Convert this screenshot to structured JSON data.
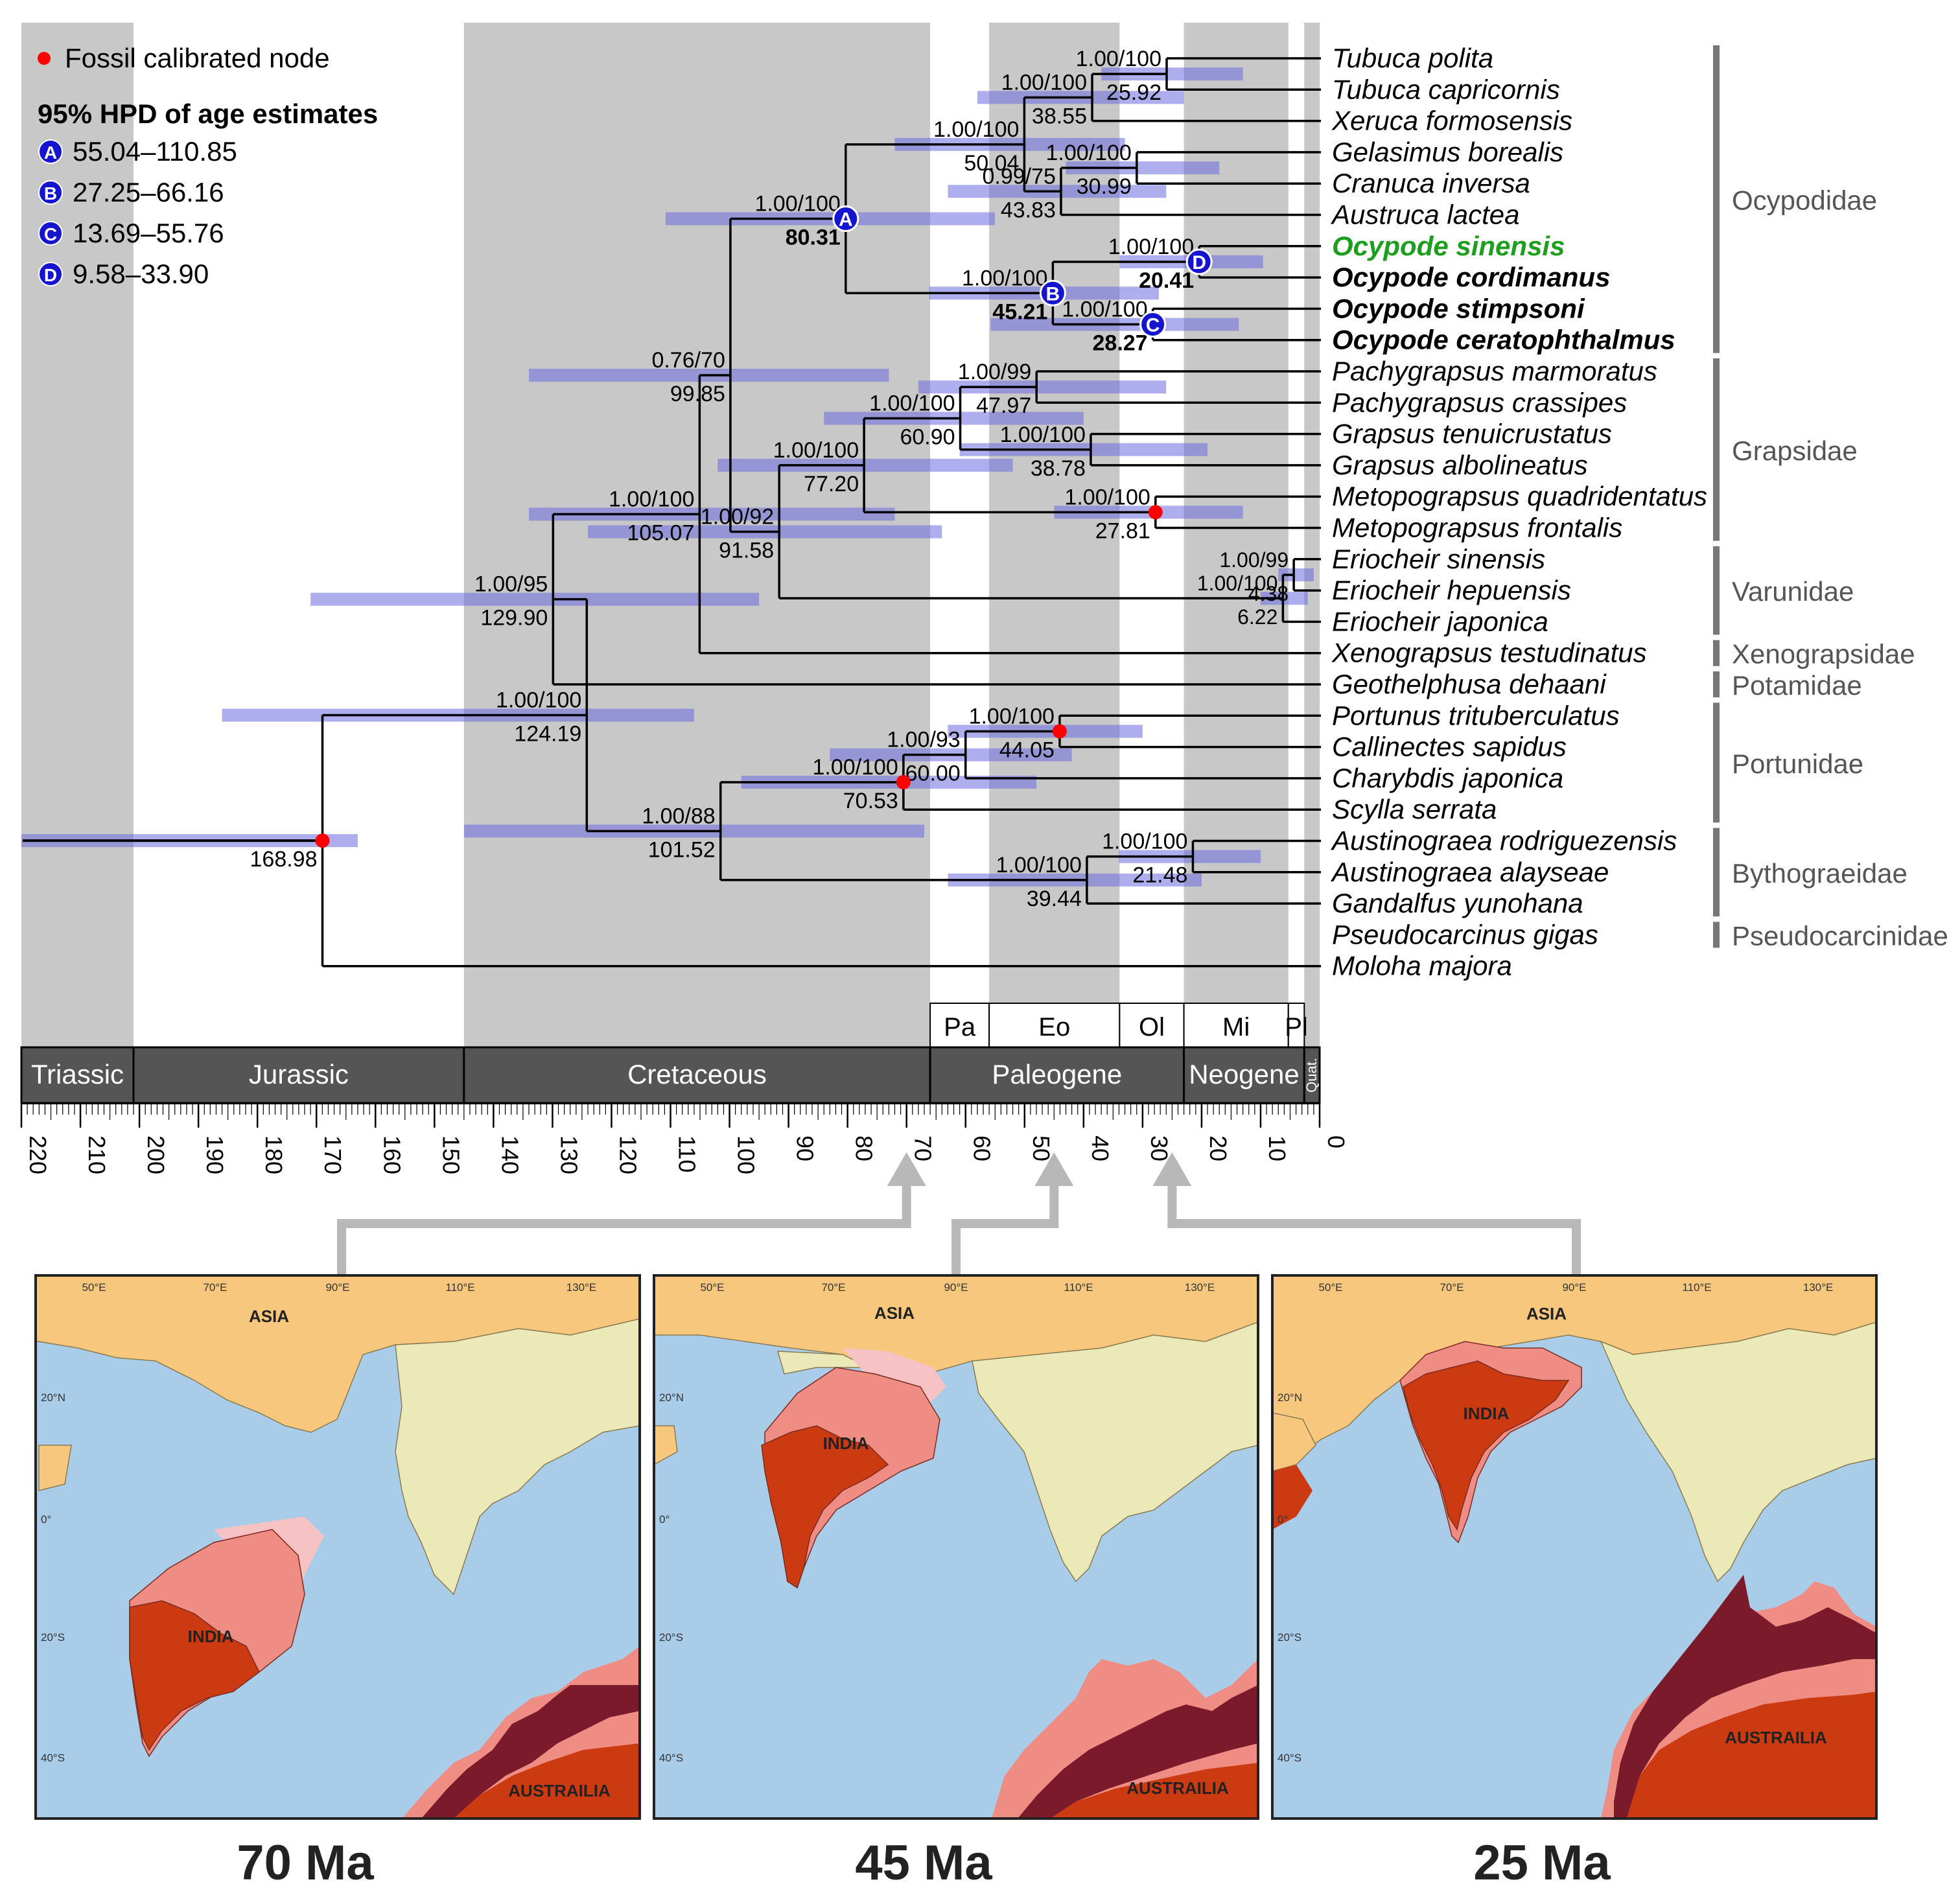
{
  "legend": {
    "fossil_label": "Fossil calibrated node",
    "hpd_title": "95% HPD of age estimates",
    "items": [
      {
        "letter": "A",
        "range": "55.04–110.85"
      },
      {
        "letter": "B",
        "range": "27.25–66.16"
      },
      {
        "letter": "C",
        "range": "13.69–55.76"
      },
      {
        "letter": "D",
        "range": "9.58–33.90"
      }
    ]
  },
  "taxa": [
    {
      "name": "Tubuca polita",
      "style": "normal"
    },
    {
      "name": "Tubuca capricornis",
      "style": "normal"
    },
    {
      "name": "Xeruca formosensis",
      "style": "normal"
    },
    {
      "name": "Gelasimus borealis",
      "style": "normal"
    },
    {
      "name": "Cranuca inversa",
      "style": "normal"
    },
    {
      "name": "Austruca lactea",
      "style": "normal"
    },
    {
      "name": "Ocypode sinensis",
      "style": "highlight"
    },
    {
      "name": "Ocypode cordimanus",
      "style": "bold"
    },
    {
      "name": "Ocypode stimpsoni",
      "style": "bold"
    },
    {
      "name": "Ocypode ceratophthalmus",
      "style": "bold"
    },
    {
      "name": "Pachygrapsus marmoratus",
      "style": "normal"
    },
    {
      "name": "Pachygrapsus crassipes",
      "style": "normal"
    },
    {
      "name": "Grapsus tenuicrustatus",
      "style": "normal"
    },
    {
      "name": "Grapsus albolineatus",
      "style": "normal"
    },
    {
      "name": "Metopograpsus quadridentatus",
      "style": "normal"
    },
    {
      "name": "Metopograpsus frontalis",
      "style": "normal"
    },
    {
      "name": "Eriocheir sinensis",
      "style": "normal"
    },
    {
      "name": "Eriocheir hepuensis",
      "style": "normal"
    },
    {
      "name": "Eriocheir japonica",
      "style": "normal"
    },
    {
      "name": "Xenograpsus testudinatus",
      "style": "normal"
    },
    {
      "name": "Geothelphusa dehaani",
      "style": "normal"
    },
    {
      "name": "Portunus trituberculatus",
      "style": "normal"
    },
    {
      "name": "Callinectes sapidus",
      "style": "normal"
    },
    {
      "name": "Charybdis japonica",
      "style": "normal"
    },
    {
      "name": "Scylla serrata",
      "style": "normal"
    },
    {
      "name": "Austinograea rodriguezensis",
      "style": "normal"
    },
    {
      "name": "Austinograea alayseae",
      "style": "normal"
    },
    {
      "name": "Gandalfus yunohana",
      "style": "normal"
    },
    {
      "name": "Pseudocarcinus gigas",
      "style": "normal"
    },
    {
      "name": "Moloha majora",
      "style": "normal"
    }
  ],
  "families": [
    {
      "name": "Ocypodidae",
      "from": 0,
      "to": 9
    },
    {
      "name": "Grapsidae",
      "from": 10,
      "to": 15
    },
    {
      "name": "Varunidae",
      "from": 16,
      "to": 18
    },
    {
      "name": "Xenograpsidae",
      "from": 19,
      "to": 19
    },
    {
      "name": "Potamidae",
      "from": 20,
      "to": 20
    },
    {
      "name": "Portunidae",
      "from": 21,
      "to": 24
    },
    {
      "name": "Bythograeidae",
      "from": 25,
      "to": 27
    },
    {
      "name": "Pseudocarcinidae",
      "from": 28,
      "to": 28
    }
  ],
  "nodes": [
    {
      "id": "root",
      "age": 168.98,
      "children": [
        "n_brach",
        "moloha"
      ],
      "support": "",
      "age_label": "168.98",
      "hpd": [
        220,
        163
      ],
      "fossil": true
    },
    {
      "id": "n_brach",
      "age": 124.19,
      "children": [
        "n_grap",
        "n_port"
      ],
      "support": "1.00/100",
      "age_label": "124.19",
      "hpd": [
        186,
        106
      ]
    },
    {
      "id": "n_grap",
      "age": 129.9,
      "children": [
        "n_thor",
        "geoth"
      ],
      "support": "1.00/95",
      "age_label": "129.90",
      "hpd": [
        171,
        95
      ]
    },
    {
      "id": "n_thor",
      "age": 105.07,
      "children": [
        "n_ocygr",
        "xeno"
      ],
      "support": "1.00/100",
      "age_label": "105.07",
      "hpd": [
        134,
        72
      ]
    },
    {
      "id": "n_ocygr",
      "age": 99.85,
      "children": [
        "n_ocy",
        "n_grvar"
      ],
      "support": "0.76/70",
      "age_label": "99.85",
      "hpd": [
        134,
        73
      ]
    },
    {
      "id": "n_ocy",
      "age": 80.31,
      "children": [
        "n_uca",
        "n_ocyp"
      ],
      "support": "1.00/100",
      "age_label": "80.31",
      "hpd": [
        110.85,
        55.04
      ],
      "letter": "A",
      "bold_age": true
    },
    {
      "id": "n_uca",
      "age": 50.04,
      "children": [
        "n_tub",
        "n_gel"
      ],
      "support": "1.00/100",
      "age_label": "50.04",
      "hpd": [
        72,
        33
      ]
    },
    {
      "id": "n_tub",
      "age": 38.55,
      "children": [
        "n_tub2",
        "xeruca"
      ],
      "support": "1.00/100",
      "age_label": "38.55",
      "hpd": [
        58,
        23
      ]
    },
    {
      "id": "n_tub2",
      "age": 25.92,
      "children": [
        "tub_pol",
        "tub_cap"
      ],
      "support": "1.00/100",
      "age_label": "25.92",
      "hpd": [
        37,
        13
      ]
    },
    {
      "id": "n_gel",
      "age": 43.83,
      "children": [
        "n_gel2",
        "austruca"
      ],
      "support": "0.99/75",
      "age_label": "43.83",
      "hpd": [
        63,
        26
      ]
    },
    {
      "id": "n_gel2",
      "age": 30.99,
      "children": [
        "gel",
        "cran"
      ],
      "support": "1.00/100",
      "age_label": "30.99",
      "hpd": [
        43,
        17
      ]
    },
    {
      "id": "n_ocyp",
      "age": 45.21,
      "children": [
        "n_ocyD",
        "n_ocyC"
      ],
      "support": "1.00/100",
      "age_label": "45.21",
      "hpd": [
        66.16,
        27.25
      ],
      "letter": "B",
      "bold_age": true
    },
    {
      "id": "n_ocyD",
      "age": 20.41,
      "children": [
        "ocy_sin",
        "ocy_cor"
      ],
      "support": "1.00/100",
      "age_label": "20.41",
      "hpd": [
        33.9,
        9.58
      ],
      "letter": "D",
      "bold_age": true
    },
    {
      "id": "n_ocyC",
      "age": 28.27,
      "children": [
        "ocy_sti",
        "ocy_cer"
      ],
      "support": "1.00/100",
      "age_label": "28.27",
      "hpd": [
        55.76,
        13.69
      ],
      "letter": "C",
      "bold_age": true
    },
    {
      "id": "n_grvar",
      "age": 91.58,
      "children": [
        "n_gr",
        "n_var"
      ],
      "support": "1.00/92",
      "age_label": "91.58",
      "hpd": [
        124,
        64
      ]
    },
    {
      "id": "n_gr",
      "age": 77.2,
      "children": [
        "n_pg",
        "n_met"
      ],
      "support": "1.00/100",
      "age_label": "77.20",
      "hpd": [
        102,
        52
      ]
    },
    {
      "id": "n_pg",
      "age": 60.9,
      "children": [
        "n_pach",
        "n_grap2"
      ],
      "support": "1.00/100",
      "age_label": "60.90",
      "hpd": [
        84,
        40
      ]
    },
    {
      "id": "n_pach",
      "age": 47.97,
      "children": [
        "pach_m",
        "pach_c"
      ],
      "support": "1.00/99",
      "age_label": "47.97",
      "hpd": [
        68,
        26
      ]
    },
    {
      "id": "n_grap2",
      "age": 38.78,
      "children": [
        "gr_t",
        "gr_a"
      ],
      "support": "1.00/100",
      "age_label": "38.78",
      "hpd": [
        61,
        19
      ]
    },
    {
      "id": "n_met",
      "age": 27.81,
      "children": [
        "met_q",
        "met_f"
      ],
      "support": "1.00/100",
      "age_label": "27.81",
      "hpd": [
        45,
        13
      ],
      "fossil": true
    },
    {
      "id": "n_var",
      "age": 6.22,
      "children": [
        "n_var2",
        "erio_j"
      ],
      "support": "1.00/100",
      "age_label": "6.22",
      "hpd": [
        10,
        2
      ]
    },
    {
      "id": "n_var2",
      "age": 4.38,
      "children": [
        "erio_s",
        "erio_h"
      ],
      "support": "1.00/99",
      "age_label": "4.38",
      "hpd": [
        7,
        1
      ]
    },
    {
      "id": "n_port",
      "age": 101.52,
      "children": [
        "n_por1",
        "n_byth"
      ],
      "support": "1.00/88",
      "age_label": "101.52",
      "hpd": [
        145,
        67
      ]
    },
    {
      "id": "n_por1",
      "age": 70.53,
      "children": [
        "n_por2",
        "scylla"
      ],
      "support": "1.00/100",
      "age_label": "70.53",
      "hpd": [
        98,
        48
      ],
      "fossil": true
    },
    {
      "id": "n_por2",
      "age": 60.0,
      "children": [
        "n_por3",
        "chary"
      ],
      "support": "1.00/93",
      "age_label": "60.00",
      "hpd": [
        83,
        42
      ]
    },
    {
      "id": "n_por3",
      "age": 44.05,
      "children": [
        "portun",
        "callin"
      ],
      "support": "1.00/100",
      "age_label": "44.05",
      "hpd": [
        63,
        30
      ],
      "fossil": true
    },
    {
      "id": "n_byth",
      "age": 39.44,
      "children": [
        "n_aus",
        "gandal"
      ],
      "support": "1.00/100",
      "age_label": "39.44",
      "hpd": [
        63,
        20
      ]
    },
    {
      "id": "n_aus",
      "age": 21.48,
      "children": [
        "aus_r",
        "aus_a"
      ],
      "support": "1.00/100",
      "age_label": "21.48",
      "hpd": [
        34,
        10
      ]
    }
  ],
  "tip_ids": [
    "tub_pol",
    "tub_cap",
    "xeruca",
    "gel",
    "cran",
    "austruca",
    "ocy_sin",
    "ocy_cor",
    "ocy_sti",
    "ocy_cer",
    "pach_m",
    "pach_c",
    "gr_t",
    "gr_a",
    "met_q",
    "met_f",
    "erio_s",
    "erio_h",
    "erio_j",
    "xeno",
    "geoth",
    "portun",
    "callin",
    "chary",
    "scylla",
    "aus_r",
    "aus_a",
    "gandal",
    "pseudo",
    "moloha"
  ],
  "timescale": {
    "epochs": [
      {
        "name": "Pa",
        "start": 66,
        "end": 56
      },
      {
        "name": "Eo",
        "start": 56,
        "end": 33.9
      },
      {
        "name": "Ol",
        "start": 33.9,
        "end": 23
      },
      {
        "name": "Mi",
        "start": 23,
        "end": 5.3
      },
      {
        "name": "Pl",
        "start": 5.3,
        "end": 2.6
      }
    ],
    "periods": [
      {
        "name": "Triassic",
        "start": 220,
        "end": 201
      },
      {
        "name": "Jurassic",
        "start": 201,
        "end": 145
      },
      {
        "name": "Cretaceous",
        "start": 145,
        "end": 66
      },
      {
        "name": "Paleogene",
        "start": 66,
        "end": 23
      },
      {
        "name": "Neogene",
        "start": 23,
        "end": 2.6
      },
      {
        "name": "Quat.",
        "start": 2.6,
        "end": 0
      }
    ],
    "shaded_bands": [
      [
        220,
        201
      ],
      [
        145,
        66
      ],
      [
        56,
        33.9
      ],
      [
        23,
        5.3
      ],
      [
        2.6,
        0
      ]
    ],
    "ticks": [
      "220",
      "210",
      "200",
      "190",
      "180",
      "170",
      "160",
      "150",
      "140",
      "130",
      "120",
      "110",
      "100",
      "90",
      "80",
      "70",
      "60",
      "50",
      "40",
      "30",
      "20",
      "10",
      "0"
    ]
  },
  "maps": [
    {
      "caption": "70 Ma",
      "age": 70
    },
    {
      "caption": "45 Ma",
      "age": 45
    },
    {
      "caption": "25 Ma",
      "age": 25
    }
  ],
  "map_labels": {
    "asia": "ASIA",
    "india": "INDIA",
    "australia": "AUSTRAILIA",
    "lon": [
      "50°E",
      "70°E",
      "90°E",
      "110°E",
      "130°E"
    ],
    "lat": [
      "20°N",
      "0°",
      "20°S",
      "40°S"
    ]
  },
  "colors": {
    "shade": "#c8c8c8",
    "hpd": "#6b6be0",
    "tree": "#000000",
    "highlight_taxon": "#1e9e1e",
    "node_letter": "#1515d0",
    "fossil": "#ff0000",
    "period_bar": "#555555",
    "family_bar": "#777777",
    "ocean": "#a9cde8",
    "asia": "#f6c77c",
    "southeast_asia": "#ebe9b8",
    "india_core": "#cc3a12",
    "india_margin": "#ef8d85",
    "india_pale": "#f7c2c3",
    "australia_core": "#cc3a12",
    "australia_edge": "#7a1a2a",
    "arrow": "#b8b8b8"
  }
}
